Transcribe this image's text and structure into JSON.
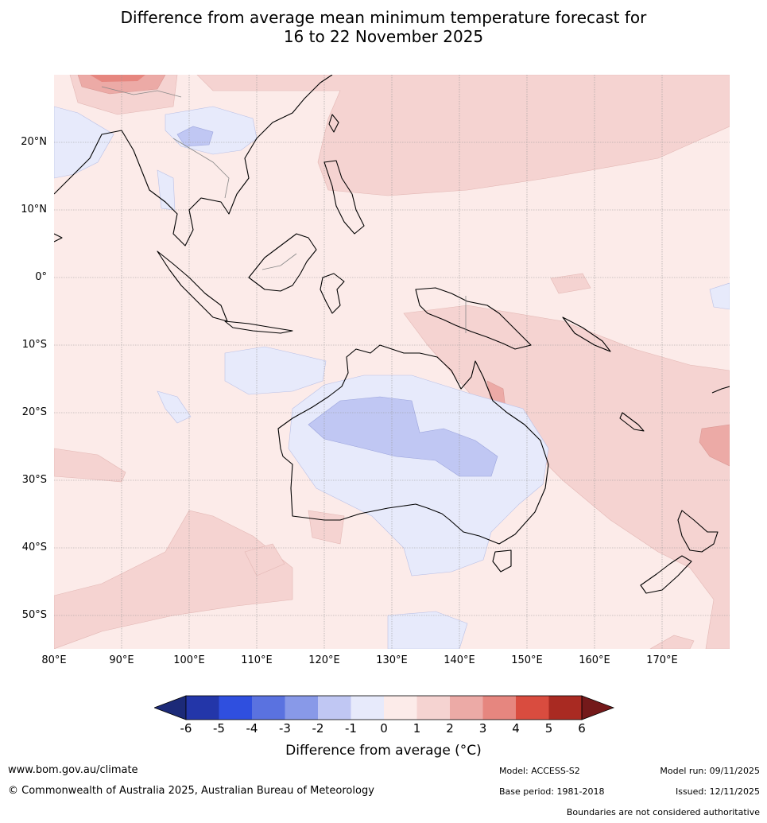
{
  "title": {
    "line1": "Difference from average mean minimum temperature forecast for",
    "line2": "16 to 22 November 2025"
  },
  "map": {
    "lat_labels": [
      "20°N",
      "10°N",
      "0°",
      "10°S",
      "20°S",
      "30°S",
      "40°S",
      "50°S"
    ],
    "lon_labels": [
      "80°E",
      "90°E",
      "100°E",
      "110°E",
      "120°E",
      "130°E",
      "140°E",
      "150°E",
      "160°E",
      "170°E"
    ],
    "extent": {
      "lon_min": 80,
      "lon_max": 180,
      "lat_min": -55,
      "lat_max": 30
    }
  },
  "colorbar": {
    "ticks": [
      "-6",
      "-5",
      "-4",
      "-3",
      "-2",
      "-1",
      "0",
      "1",
      "2",
      "3",
      "4",
      "5",
      "6"
    ],
    "label": "Difference from average (°C)",
    "colors": {
      "lt_m6": "#1c2a78",
      "m6_m5": "#2336a9",
      "m5_m4": "#2f4fdf",
      "m4_m3": "#5a72e0",
      "m3_m2": "#8899e8",
      "m2_m1": "#c0c7f3",
      "m1_0": "#e7eafb",
      "0_1": "#fcebe9",
      "1_2": "#f5d3d1",
      "2_3": "#ecaaa6",
      "3_4": "#e6867f",
      "4_5": "#d94c3f",
      "5_6": "#a92a22",
      "gt_6": "#74191a"
    }
  },
  "footer": {
    "url": "www.bom.gov.au/climate",
    "copyright": "© Commonwealth of Australia 2025, Australian Bureau of Meteorology",
    "model": "Model: ACCESS-S2",
    "base_period": "Base period: 1981-2018",
    "model_run": "Model run: 09/11/2025",
    "issued": "Issued: 12/11/2025",
    "disclaimer": "Boundaries are not considered authoritative"
  }
}
